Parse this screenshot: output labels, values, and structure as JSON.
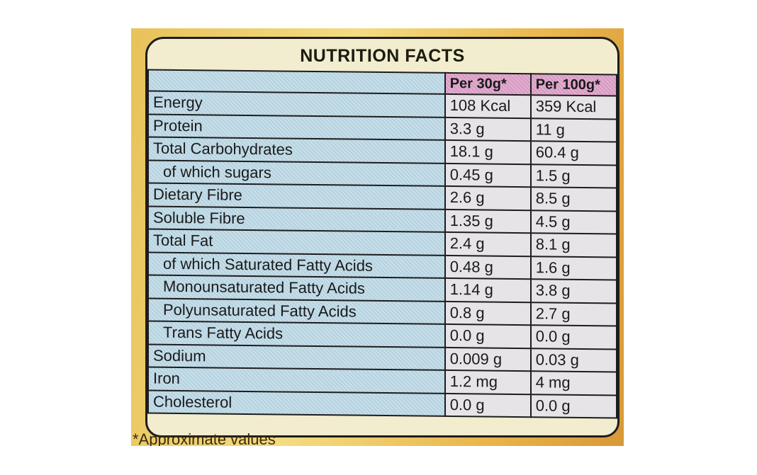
{
  "title": "NUTRITION FACTS",
  "columns": [
    "Per 30g*",
    "Per 100g*"
  ],
  "rows": [
    {
      "label": "Energy",
      "v1": "108 Kcal",
      "v2": "359 Kcal"
    },
    {
      "label": "Protein",
      "v1": "3.3 g",
      "v2": "11 g"
    },
    {
      "label": "Total Carbohydrates",
      "v1": "18.1 g",
      "v2": "60.4 g"
    },
    {
      "label": "of which sugars",
      "v1": "0.45 g",
      "v2": "1.5 g"
    },
    {
      "label": "Dietary Fibre",
      "v1": "2.6 g",
      "v2": "8.5 g"
    },
    {
      "label": "Soluble Fibre",
      "v1": "1.35 g",
      "v2": "4.5 g"
    },
    {
      "label": "Total Fat",
      "v1": "2.4 g",
      "v2": "8.1 g"
    },
    {
      "label": "of which Saturated Fatty Acids",
      "v1": "0.48 g",
      "v2": "1.6 g"
    },
    {
      "label": "Monounsaturated Fatty Acids",
      "v1": "1.14 g",
      "v2": "3.8 g"
    },
    {
      "label": "Polyunsaturated Fatty Acids",
      "v1": "0.8 g",
      "v2": "2.7 g"
    },
    {
      "label": "Trans Fatty Acids",
      "v1": "0.0 g",
      "v2": "0.0 g"
    },
    {
      "label": "Sodium",
      "v1": "0.009 g",
      "v2": "0.03 g"
    },
    {
      "label": "Iron",
      "v1": "1.2 mg",
      "v2": "4 mg"
    },
    {
      "label": "Cholesterol",
      "v1": "0.0 g",
      "v2": "0.0 g"
    }
  ],
  "footnote": "*Approximate values"
}
